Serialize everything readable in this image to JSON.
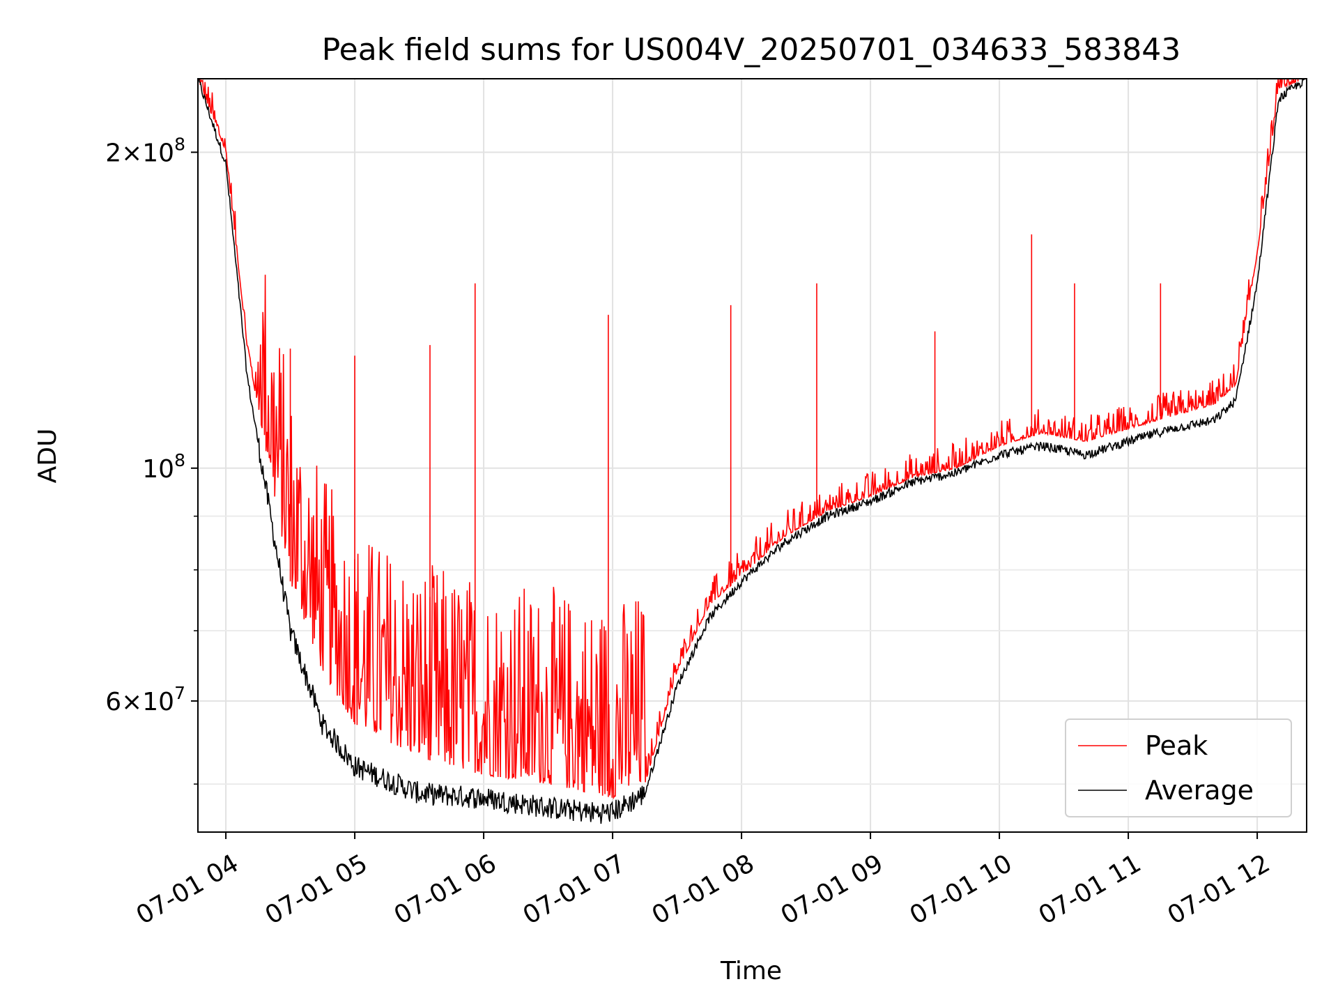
{
  "chart_data": {
    "type": "line",
    "title": "Peak field sums for US004V_20250701_034633_583843",
    "xlabel": "Time",
    "ylabel": "ADU",
    "x_range": [
      "2025-07-01T03:47",
      "2025-07-01T12:23"
    ],
    "ylim": [
      45000000,
      235000000
    ],
    "y_scale": "log",
    "grid": true,
    "legend_position": "bottom-right",
    "x_ticks": [
      "07-01 04",
      "07-01 05",
      "07-01 06",
      "07-01 07",
      "07-01 08",
      "07-01 09",
      "07-01 10",
      "07-01 11",
      "07-01 12"
    ],
    "y_ticks": [
      {
        "value": 200000000,
        "base": "2",
        "exp": "8"
      },
      {
        "value": 100000000,
        "base": "",
        "exp": "8"
      },
      {
        "value": 60000000,
        "base": "6",
        "exp": "7"
      }
    ],
    "y_minor_ticks": [
      50000000,
      70000000,
      80000000,
      90000000
    ],
    "x": [
      "03:47",
      "04:00",
      "04:10",
      "04:20",
      "04:30",
      "04:45",
      "05:00",
      "05:30",
      "06:00",
      "06:30",
      "06:50",
      "07:00",
      "07:15",
      "07:30",
      "07:45",
      "08:00",
      "08:20",
      "08:40",
      "09:00",
      "09:20",
      "09:40",
      "10:00",
      "10:20",
      "10:40",
      "11:00",
      "11:20",
      "11:40",
      "11:50",
      "12:00",
      "12:10",
      "12:23"
    ],
    "series": [
      {
        "name": "Peak",
        "color": "#ff0000",
        "values": [
          235000000,
          200000000,
          130000000,
          100000000,
          78000000,
          64000000,
          57000000,
          53000000,
          51000000,
          50000000,
          49000000,
          48500000,
          50000000,
          64000000,
          74000000,
          79000000,
          86000000,
          91000000,
          94000000,
          98000000,
          100000000,
          105000000,
          108000000,
          106000000,
          109000000,
          112000000,
          115000000,
          120000000,
          160000000,
          230000000,
          235000000
        ],
        "spikes": [
          {
            "x": "04:30",
            "value": 130000000
          },
          {
            "x": "05:00",
            "value": 128000000
          },
          {
            "x": "05:35",
            "value": 131000000
          },
          {
            "x": "05:56",
            "value": 150000000
          },
          {
            "x": "06:58",
            "value": 140000000
          },
          {
            "x": "07:55",
            "value": 143000000
          },
          {
            "x": "08:35",
            "value": 150000000
          },
          {
            "x": "09:30",
            "value": 135000000
          },
          {
            "x": "10:15",
            "value": 167000000
          },
          {
            "x": "10:35",
            "value": 150000000
          },
          {
            "x": "11:15",
            "value": 150000000
          }
        ]
      },
      {
        "name": "Average",
        "color": "#000000",
        "values": [
          235000000,
          195000000,
          122000000,
          92000000,
          70000000,
          57000000,
          52000000,
          49000000,
          48500000,
          47500000,
          47000000,
          47000000,
          49000000,
          62000000,
          72000000,
          78000000,
          85000000,
          90000000,
          93000000,
          97000000,
          99000000,
          103000000,
          105000000,
          103000000,
          106000000,
          109000000,
          111000000,
          116000000,
          150000000,
          225000000,
          235000000
        ]
      }
    ]
  }
}
